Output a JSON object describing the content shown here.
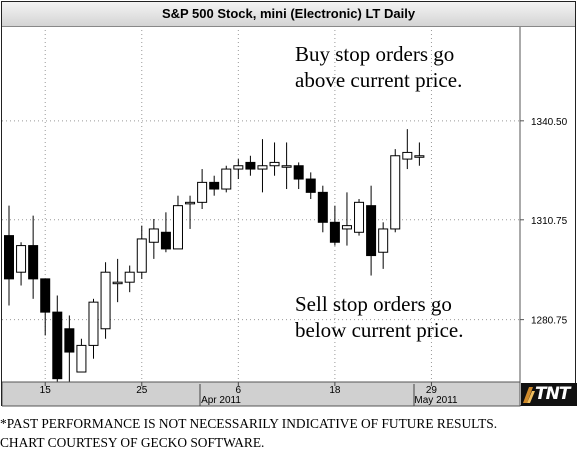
{
  "chart_title": "S&P 500 Stock, mini (Electronic) LT Daily",
  "annotations": {
    "buy_line1": "Buy stop orders go",
    "buy_line2": "above current price.",
    "sell_line1": "Sell stop orders go",
    "sell_line2": "below current price."
  },
  "footer": {
    "line1": "*PAST PERFORMANCE IS NOT NECESSARILY INDICATIVE OF FUTURE RESULTS.",
    "line2": "CHART COURTESY OF GECKO SOFTWARE."
  },
  "logo_text": "TNT",
  "colors": {
    "up": "#ffffff",
    "down": "#000000",
    "grid": "#999999",
    "axis_band": "#d0d0d0"
  },
  "chart_data": {
    "type": "candlestick",
    "title": "S&P 500 Stock, mini (Electronic) LT Daily",
    "ylim": [
      1262,
      1369
    ],
    "y_ticks": [
      1280.75,
      1310.75,
      1340.5
    ],
    "y_tick_labels": [
      "1280.75",
      "1310.75",
      "1340.50"
    ],
    "x_tick_labels": [
      "15",
      "25",
      "6",
      "18",
      "29"
    ],
    "x_month_labels": [
      "Apr 2011",
      "May 2011"
    ],
    "grid": true,
    "candles": [
      {
        "open": 1306,
        "high": 1315,
        "low": 1285,
        "close": 1293
      },
      {
        "open": 1295,
        "high": 1304,
        "low": 1291,
        "close": 1303
      },
      {
        "open": 1303,
        "high": 1312,
        "low": 1287,
        "close": 1293
      },
      {
        "open": 1293,
        "high": 1293,
        "low": 1276,
        "close": 1283
      },
      {
        "open": 1283,
        "high": 1288,
        "low": 1262,
        "close": 1263
      },
      {
        "open": 1278,
        "high": 1282,
        "low": 1260,
        "close": 1271
      },
      {
        "open": 1265,
        "high": 1275,
        "low": 1265,
        "close": 1273
      },
      {
        "open": 1273,
        "high": 1287,
        "low": 1269,
        "close": 1286
      },
      {
        "open": 1278,
        "high": 1298,
        "low": 1275,
        "close": 1295
      },
      {
        "open": 1292,
        "high": 1299,
        "low": 1286,
        "close": 1292
      },
      {
        "open": 1292,
        "high": 1297,
        "low": 1289,
        "close": 1295
      },
      {
        "open": 1295,
        "high": 1309,
        "low": 1293,
        "close": 1305
      },
      {
        "open": 1304,
        "high": 1311,
        "low": 1299,
        "close": 1308
      },
      {
        "open": 1307,
        "high": 1313,
        "low": 1301,
        "close": 1302
      },
      {
        "open": 1302,
        "high": 1318,
        "low": 1302,
        "close": 1315
      },
      {
        "open": 1316,
        "high": 1318,
        "low": 1308,
        "close": 1316
      },
      {
        "open": 1316,
        "high": 1326,
        "low": 1314,
        "close": 1322
      },
      {
        "open": 1322,
        "high": 1324,
        "low": 1318,
        "close": 1320
      },
      {
        "open": 1320,
        "high": 1327,
        "low": 1319,
        "close": 1326
      },
      {
        "open": 1326,
        "high": 1329,
        "low": 1323,
        "close": 1327
      },
      {
        "open": 1328,
        "high": 1330,
        "low": 1324,
        "close": 1326
      },
      {
        "open": 1326,
        "high": 1335,
        "low": 1319,
        "close": 1327
      },
      {
        "open": 1327,
        "high": 1334,
        "low": 1324,
        "close": 1328
      },
      {
        "open": 1327,
        "high": 1334,
        "low": 1320,
        "close": 1327
      },
      {
        "open": 1327,
        "high": 1328,
        "low": 1320,
        "close": 1323
      },
      {
        "open": 1323,
        "high": 1325,
        "low": 1317,
        "close": 1319
      },
      {
        "open": 1319,
        "high": 1321,
        "low": 1307,
        "close": 1310
      },
      {
        "open": 1310,
        "high": 1315,
        "low": 1303,
        "close": 1304
      },
      {
        "open": 1308,
        "high": 1319,
        "low": 1303,
        "close": 1309
      },
      {
        "open": 1307,
        "high": 1317,
        "low": 1306,
        "close": 1316
      },
      {
        "open": 1315,
        "high": 1321,
        "low": 1294,
        "close": 1300
      },
      {
        "open": 1301,
        "high": 1310,
        "low": 1296,
        "close": 1308
      },
      {
        "open": 1308,
        "high": 1332,
        "low": 1307,
        "close": 1330
      },
      {
        "open": 1329,
        "high": 1338,
        "low": 1326,
        "close": 1331
      },
      {
        "open": 1330,
        "high": 1334,
        "low": 1327,
        "close": 1330
      }
    ]
  }
}
